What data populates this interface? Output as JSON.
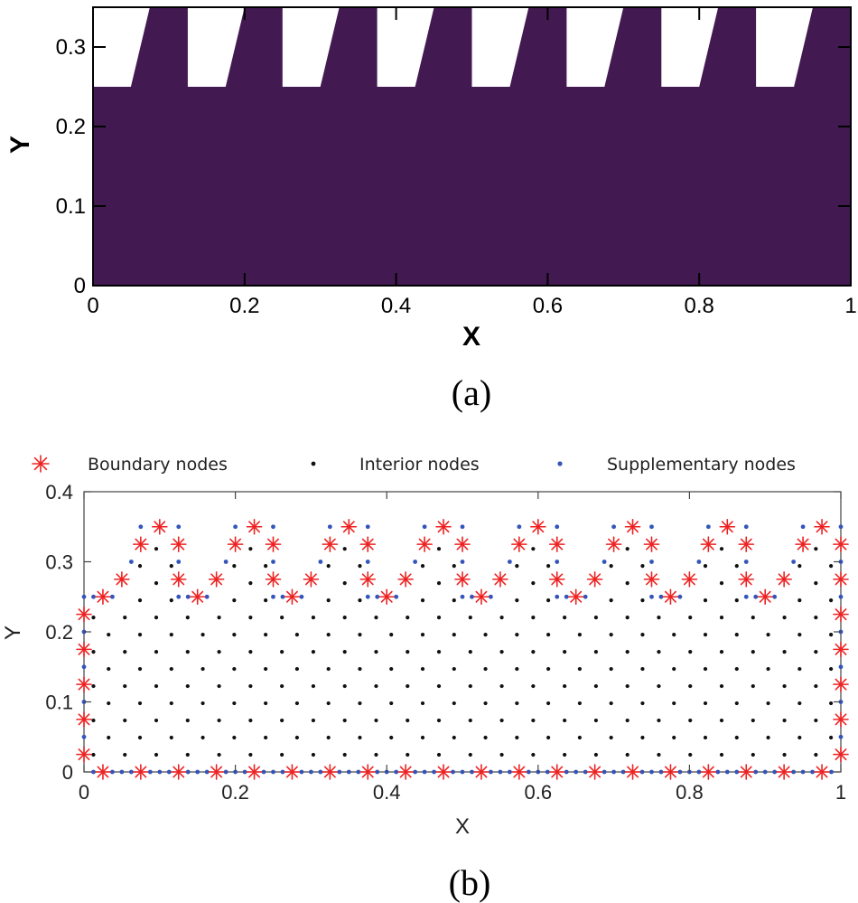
{
  "chart_data": [
    {
      "type": "area",
      "xlabel": "X",
      "ylabel": "Y",
      "xlim": [
        0,
        1
      ],
      "ylim": [
        0,
        0.35
      ],
      "xticks": [
        "0",
        "0.2",
        "0.4",
        "0.6",
        "0.8",
        "1"
      ],
      "yticks": [
        "0",
        "0.1",
        "0.2",
        "0.3"
      ],
      "fill_color": "#431952",
      "grid": false,
      "boundary": {
        "x": [
          0,
          0,
          0.05,
          0.075,
          0.125,
          0.125,
          0.175,
          0.2,
          0.25,
          0.25,
          0.3,
          0.325,
          0.375,
          0.375,
          0.425,
          0.45,
          0.5,
          0.5,
          0.55,
          0.575,
          0.625,
          0.625,
          0.675,
          0.7,
          0.75,
          0.75,
          0.8,
          0.825,
          0.875,
          0.875,
          0.925,
          0.95,
          1,
          1
        ],
        "y": [
          0,
          0.25,
          0.25,
          0.35,
          0.35,
          0.25,
          0.25,
          0.35,
          0.35,
          0.25,
          0.25,
          0.35,
          0.35,
          0.25,
          0.25,
          0.35,
          0.35,
          0.25,
          0.25,
          0.35,
          0.35,
          0.25,
          0.25,
          0.35,
          0.35,
          0.25,
          0.25,
          0.35,
          0.35,
          0.25,
          0.25,
          0.35,
          0.35,
          0
        ]
      },
      "caption": "(a)"
    },
    {
      "type": "scatter",
      "xlabel": "X",
      "ylabel": "Y",
      "xlim": [
        0,
        1
      ],
      "ylim": [
        0,
        0.4
      ],
      "xticks": [
        "0",
        "0.2",
        "0.4",
        "0.6",
        "0.8",
        "1"
      ],
      "yticks": [
        "0",
        "0.1",
        "0.2",
        "0.3",
        "0.4"
      ],
      "grid": false,
      "legend": "top",
      "series": [
        {
          "name": "Boundary nodes",
          "color": "#ee2222",
          "marker": "asterisk",
          "x": [
            0.025,
            0.075,
            0.125,
            0.175,
            0.225,
            0.275,
            0.325,
            0.375,
            0.425,
            0.475,
            0.525,
            0.575,
            0.625,
            0.675,
            0.725,
            0.775,
            0.825,
            0.875,
            0.925,
            0.975,
            0,
            0,
            0,
            0,
            0,
            1,
            1,
            1,
            1,
            1,
            1,
            1,
            0.025,
            0.05,
            0.075,
            0.1,
            0.125,
            0.125,
            0.15,
            0.175,
            0.2,
            0.225,
            0.25,
            0.25,
            0.275,
            0.3,
            0.325,
            0.35,
            0.375,
            0.375,
            0.4,
            0.425,
            0.45,
            0.475,
            0.5,
            0.5,
            0.525,
            0.55,
            0.575,
            0.6,
            0.625,
            0.625,
            0.65,
            0.675,
            0.7,
            0.725,
            0.75,
            0.75,
            0.775,
            0.8,
            0.825,
            0.85,
            0.875,
            0.875,
            0.9,
            0.925,
            0.95,
            0.975
          ],
          "y": [
            0,
            0,
            0,
            0,
            0,
            0,
            0,
            0,
            0,
            0,
            0,
            0,
            0,
            0,
            0,
            0,
            0,
            0,
            0,
            0,
            0.025,
            0.075,
            0.125,
            0.175,
            0.225,
            0.025,
            0.075,
            0.125,
            0.175,
            0.225,
            0.275,
            0.325,
            0.25,
            0.275,
            0.325,
            0.35,
            0.325,
            0.275,
            0.25,
            0.275,
            0.325,
            0.35,
            0.325,
            0.275,
            0.25,
            0.275,
            0.325,
            0.35,
            0.325,
            0.275,
            0.25,
            0.275,
            0.325,
            0.35,
            0.325,
            0.275,
            0.25,
            0.275,
            0.325,
            0.35,
            0.325,
            0.275,
            0.25,
            0.275,
            0.325,
            0.35,
            0.325,
            0.275,
            0.25,
            0.275,
            0.325,
            0.35,
            0.325,
            0.275,
            0.25,
            0.275,
            0.325,
            0.35
          ]
        },
        {
          "name": "Interior nodes",
          "color": "#111111",
          "marker": "dot",
          "x": [],
          "y": []
        },
        {
          "name": "Supplementary nodes",
          "color": "#3355bb",
          "marker": "dot",
          "x": [
            0.05,
            0.1,
            0.15,
            0.2,
            0.25,
            0.3,
            0.35,
            0.4,
            0.45,
            0.5,
            0.55,
            0.6,
            0.65,
            0.7,
            0.75,
            0.8,
            0.85,
            0.9,
            0.95,
            0.0125,
            0.0375,
            0.0625,
            0.0875,
            0.1125,
            0.1375,
            0.1625,
            0.1875,
            0.2125,
            0.2375,
            0.2625,
            0.2875,
            0.3125,
            0.3375,
            0.3625,
            0.3875,
            0.4125,
            0.4375,
            0.4625,
            0.4875,
            0.5125,
            0.5375,
            0.5625,
            0.5875,
            0.6125,
            0.6375,
            0.6625,
            0.6875,
            0.7125,
            0.7375,
            0.7625,
            0.7875,
            0.8125,
            0.8375,
            0.8625,
            0.8875,
            0.9125,
            0.9375,
            0.9625,
            0.9875,
            0,
            0,
            0,
            0,
            0,
            1,
            1,
            1,
            1,
            1,
            1,
            1,
            0.0125,
            0.0375,
            0.0625,
            0.075,
            0.125,
            0.125,
            0.125,
            0.1375,
            0.1625,
            0.1875,
            0.2,
            0.25,
            0.25,
            0.25,
            0.2625,
            0.2875,
            0.3125,
            0.325,
            0.375,
            0.375,
            0.375,
            0.3875,
            0.4125,
            0.4375,
            0.45,
            0.5,
            0.5,
            0.5,
            0.5125,
            0.5375,
            0.5625,
            0.575,
            0.625,
            0.625,
            0.625,
            0.6375,
            0.6625,
            0.6875,
            0.7,
            0.75,
            0.75,
            0.75,
            0.7625,
            0.7875,
            0.8125,
            0.825,
            0.875,
            0.875,
            0.875,
            0.8875,
            0.9125,
            0.9375,
            0.95
          ],
          "y": [
            0,
            0,
            0,
            0,
            0,
            0,
            0,
            0,
            0,
            0,
            0,
            0,
            0,
            0,
            0,
            0,
            0,
            0,
            0,
            0,
            0,
            0,
            0,
            0,
            0,
            0,
            0,
            0,
            0,
            0,
            0,
            0,
            0,
            0,
            0,
            0,
            0,
            0,
            0,
            0,
            0,
            0,
            0,
            0,
            0,
            0,
            0,
            0,
            0,
            0,
            0,
            0,
            0,
            0,
            0,
            0,
            0,
            0,
            0,
            0.05,
            0.1,
            0.15,
            0.2,
            0.25,
            0.05,
            0.1,
            0.15,
            0.2,
            0.25,
            0.3,
            0.35,
            0.25,
            0.25,
            0.3,
            0.35,
            0.35,
            0.3,
            0.25,
            0.25,
            0.25,
            0.3,
            0.35,
            0.35,
            0.3,
            0.25,
            0.25,
            0.25,
            0.3,
            0.35,
            0.35,
            0.3,
            0.25,
            0.25,
            0.25,
            0.3,
            0.35,
            0.35,
            0.3,
            0.25,
            0.25,
            0.25,
            0.3,
            0.35,
            0.35,
            0.3,
            0.25,
            0.25,
            0.25,
            0.3,
            0.35,
            0.35,
            0.3,
            0.25,
            0.25,
            0.25,
            0.3,
            0.35,
            0.35,
            0.3,
            0.25,
            0.25,
            0.25,
            0.3,
            0.35
          ]
        }
      ],
      "caption": "(b)"
    }
  ]
}
